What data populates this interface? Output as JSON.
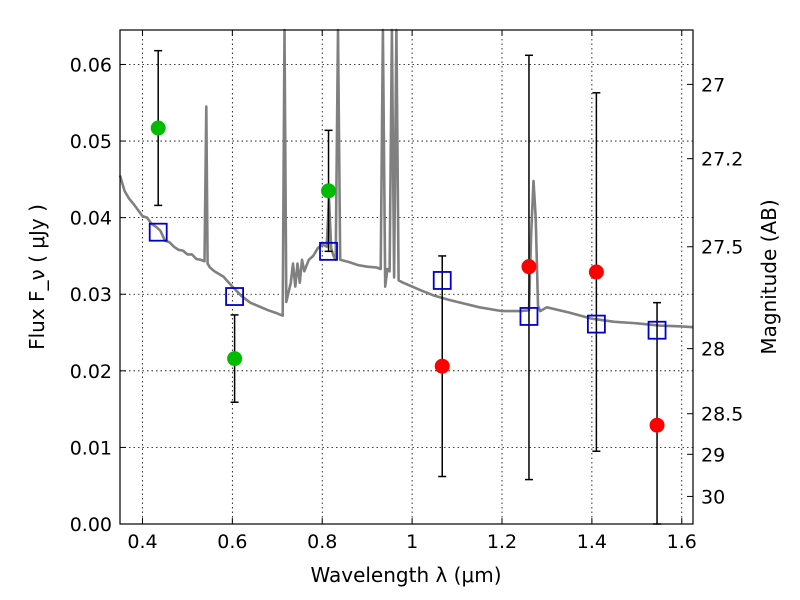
{
  "chart_data": {
    "type": "scatter",
    "xlabel": "Wavelength  λ (μm)",
    "ylabel": "Flux  F_ν  ( μJy )",
    "ylabel_right": "Magnitude (AB)",
    "xlim": [
      0.35,
      1.625
    ],
    "ylim": [
      0.0,
      0.0645
    ],
    "grid": true,
    "x_ticks": [
      0.4,
      0.6,
      0.8,
      1.0,
      1.2,
      1.4,
      1.6
    ],
    "x_tick_labels": [
      "0.4",
      "0.6",
      "0.8",
      "1",
      "1.2",
      "1.4",
      "1.6"
    ],
    "y_ticks": [
      0.0,
      0.01,
      0.02,
      0.03,
      0.04,
      0.05,
      0.06
    ],
    "y_tick_labels": [
      "0.00",
      "0.01",
      "0.02",
      "0.03",
      "0.04",
      "0.05",
      "0.06"
    ],
    "right_ticks": [
      {
        "label": "27",
        "flux": 0.0574
      },
      {
        "label": "27.2",
        "flux": 0.0477
      },
      {
        "label": "27.5",
        "flux": 0.0362
      },
      {
        "label": "28",
        "flux": 0.0229
      },
      {
        "label": "28.5",
        "flux": 0.0144
      },
      {
        "label": "29",
        "flux": 0.0091
      },
      {
        "label": "30",
        "flux": 0.0036
      }
    ],
    "series": [
      {
        "marker": "circle",
        "color": "#00bb00",
        "points": [
          {
            "x": 0.435,
            "y": 0.0517,
            "err_low": 0.0416,
            "err_high": 0.0618
          },
          {
            "x": 0.605,
            "y": 0.0216,
            "err_low": 0.0159,
            "err_high": 0.0273
          },
          {
            "x": 0.814,
            "y": 0.0435,
            "err_low": 0.0356,
            "err_high": 0.0514
          }
        ]
      },
      {
        "marker": "circle",
        "color": "#ff0000",
        "points": [
          {
            "x": 1.067,
            "y": 0.0206,
            "err_low": 0.0062,
            "err_high": 0.035
          },
          {
            "x": 1.26,
            "y": 0.0336,
            "err_low": 0.0058,
            "err_high": 0.0612
          },
          {
            "x": 1.41,
            "y": 0.0329,
            "err_low": 0.0095,
            "err_high": 0.0563
          },
          {
            "x": 1.545,
            "y": 0.0129,
            "err_low": 0.0,
            "err_high": 0.0289
          }
        ]
      },
      {
        "marker": "square",
        "color": "#0000cc",
        "points": [
          {
            "x": 0.435,
            "y": 0.0381
          },
          {
            "x": 0.605,
            "y": 0.0297
          },
          {
            "x": 0.814,
            "y": 0.0356
          },
          {
            "x": 1.067,
            "y": 0.0318
          },
          {
            "x": 1.26,
            "y": 0.0271
          },
          {
            "x": 1.41,
            "y": 0.0261
          },
          {
            "x": 1.545,
            "y": 0.0253
          }
        ]
      }
    ],
    "model_spectrum": {
      "color": "#808080",
      "points": [
        [
          0.35,
          0.0455
        ],
        [
          0.36,
          0.0435
        ],
        [
          0.37,
          0.0425
        ],
        [
          0.38,
          0.0418
        ],
        [
          0.39,
          0.041
        ],
        [
          0.4,
          0.0402
        ],
        [
          0.41,
          0.04
        ],
        [
          0.42,
          0.0392
        ],
        [
          0.43,
          0.0388
        ],
        [
          0.44,
          0.0383
        ],
        [
          0.45,
          0.037
        ],
        [
          0.46,
          0.0368
        ],
        [
          0.47,
          0.0362
        ],
        [
          0.48,
          0.0358
        ],
        [
          0.49,
          0.0357
        ],
        [
          0.5,
          0.0352
        ],
        [
          0.51,
          0.0352
        ],
        [
          0.52,
          0.0346
        ],
        [
          0.53,
          0.0345
        ],
        [
          0.538,
          0.0343
        ],
        [
          0.542,
          0.0545
        ],
        [
          0.545,
          0.034
        ],
        [
          0.55,
          0.0335
        ],
        [
          0.56,
          0.033
        ],
        [
          0.58,
          0.0323
        ],
        [
          0.6,
          0.031
        ],
        [
          0.62,
          0.0298
        ],
        [
          0.64,
          0.0289
        ],
        [
          0.66,
          0.0284
        ],
        [
          0.68,
          0.0279
        ],
        [
          0.7,
          0.0275
        ],
        [
          0.712,
          0.0272
        ],
        [
          0.716,
          0.0645
        ],
        [
          0.72,
          0.029
        ],
        [
          0.73,
          0.0315
        ],
        [
          0.735,
          0.034
        ],
        [
          0.74,
          0.031
        ],
        [
          0.745,
          0.034
        ],
        [
          0.75,
          0.0315
        ],
        [
          0.755,
          0.0345
        ],
        [
          0.76,
          0.033
        ],
        [
          0.77,
          0.0345
        ],
        [
          0.78,
          0.035
        ],
        [
          0.79,
          0.036
        ],
        [
          0.8,
          0.0365
        ],
        [
          0.81,
          0.0362
        ],
        [
          0.815,
          0.0425
        ],
        [
          0.82,
          0.036
        ],
        [
          0.825,
          0.035
        ],
        [
          0.83,
          0.0345
        ],
        [
          0.835,
          0.0645
        ],
        [
          0.84,
          0.0345
        ],
        [
          0.86,
          0.0342
        ],
        [
          0.88,
          0.0338
        ],
        [
          0.9,
          0.0336
        ],
        [
          0.92,
          0.0335
        ],
        [
          0.93,
          0.0333
        ],
        [
          0.935,
          0.0645
        ],
        [
          0.94,
          0.031
        ],
        [
          0.945,
          0.0333
        ],
        [
          0.95,
          0.033
        ],
        [
          0.955,
          0.0645
        ],
        [
          0.96,
          0.0322
        ],
        [
          0.965,
          0.0645
        ],
        [
          0.97,
          0.0318
        ],
        [
          0.98,
          0.0315
        ],
        [
          1.0,
          0.031
        ],
        [
          1.02,
          0.0305
        ],
        [
          1.05,
          0.0298
        ],
        [
          1.08,
          0.0293
        ],
        [
          1.1,
          0.029
        ],
        [
          1.15,
          0.0283
        ],
        [
          1.2,
          0.0278
        ],
        [
          1.24,
          0.0278
        ],
        [
          1.26,
          0.0279
        ],
        [
          1.265,
          0.038
        ],
        [
          1.27,
          0.0448
        ],
        [
          1.275,
          0.04
        ],
        [
          1.28,
          0.0285
        ],
        [
          1.285,
          0.0278
        ],
        [
          1.3,
          0.0283
        ],
        [
          1.35,
          0.0276
        ],
        [
          1.4,
          0.0268
        ],
        [
          1.45,
          0.0264
        ],
        [
          1.5,
          0.0262
        ],
        [
          1.55,
          0.0259
        ],
        [
          1.6,
          0.0258
        ],
        [
          1.625,
          0.0257
        ]
      ]
    }
  }
}
